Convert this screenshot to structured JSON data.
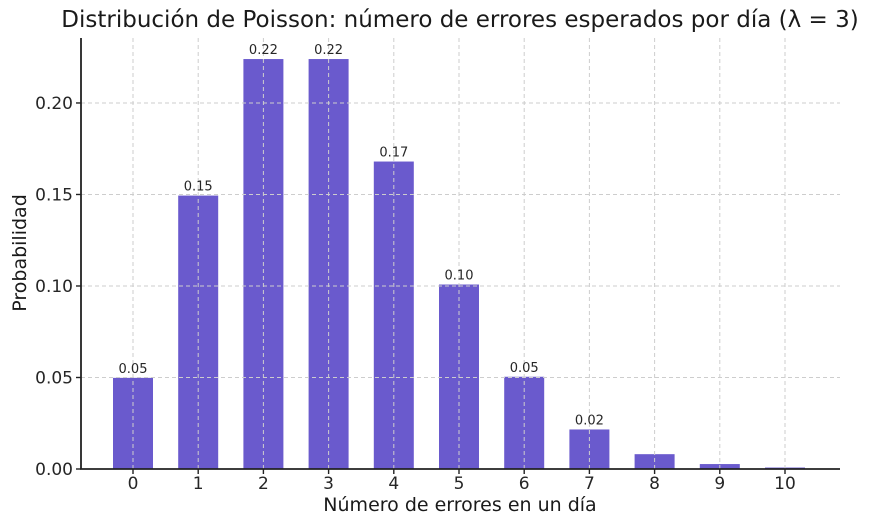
{
  "chart_data": {
    "type": "bar",
    "title": "Distribución de Poisson: número de errores esperados por día (λ = 3)",
    "xlabel": "Número de errores en un día",
    "ylabel": "Probabilidad",
    "categories": [
      "0",
      "1",
      "2",
      "3",
      "4",
      "5",
      "6",
      "7",
      "8",
      "9",
      "10"
    ],
    "values": [
      0.0498,
      0.1494,
      0.224,
      0.224,
      0.168,
      0.1008,
      0.0504,
      0.0216,
      0.0081,
      0.0027,
      0.0008
    ],
    "bar_labels": [
      "0.05",
      "0.15",
      "0.22",
      "0.22",
      "0.17",
      "0.10",
      "0.05",
      "0.02",
      "",
      "",
      ""
    ],
    "yticks": [
      0,
      0.05,
      0.1,
      0.15,
      0.2
    ],
    "ytick_labels": [
      "0.00",
      "0.05",
      "0.10",
      "0.15",
      "0.20"
    ],
    "ylim": [
      0,
      0.2355
    ],
    "grid": true,
    "grid_style": "dashed",
    "legend": "none",
    "colors": {
      "bar": "#6A5ACD",
      "grid": "#cdcdcd",
      "spine": "#222222",
      "text": "#262626"
    }
  }
}
